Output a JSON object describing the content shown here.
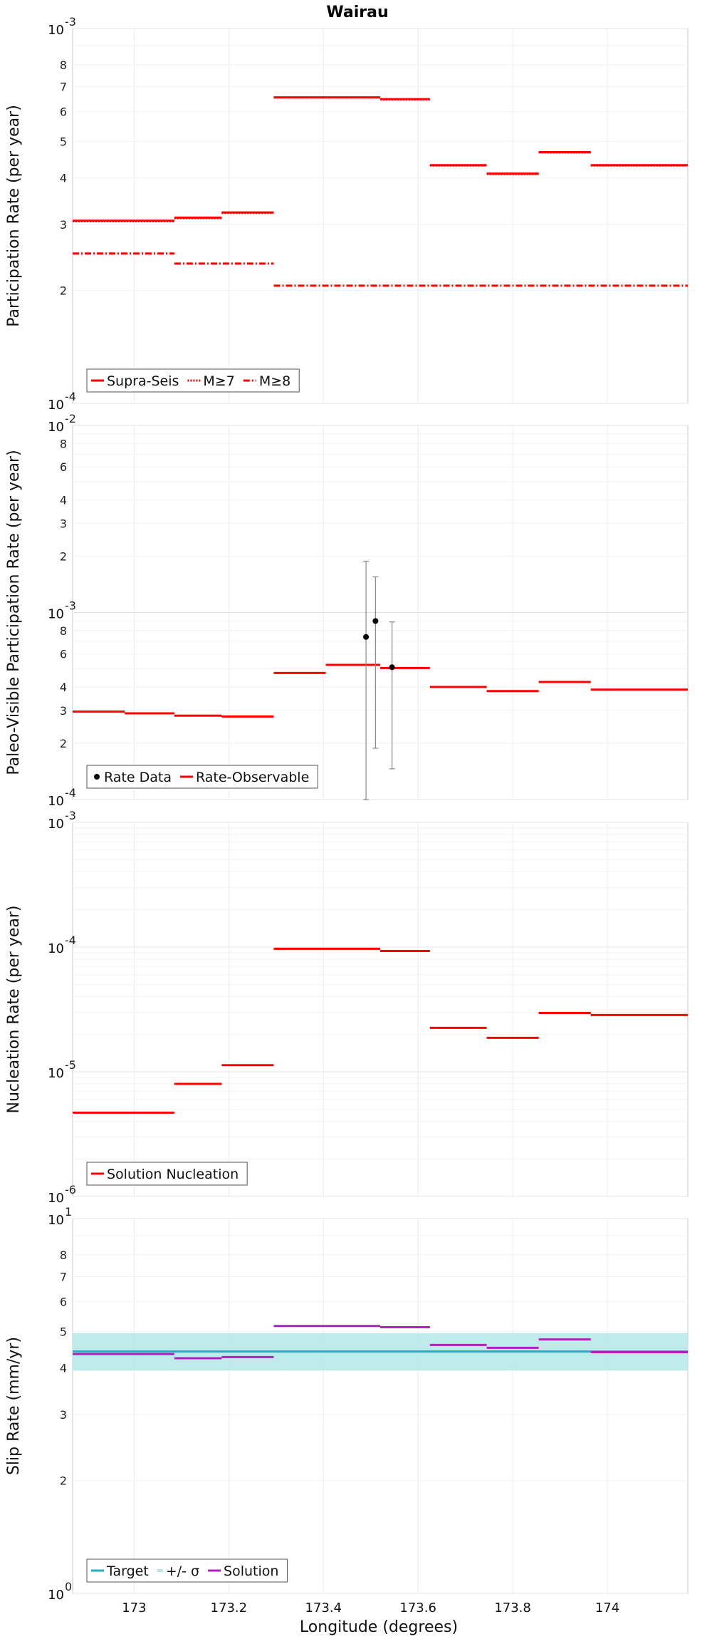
{
  "figure": {
    "title": "Wairau",
    "xlabel": "Longitude (degrees)",
    "xlim": [
      172.87,
      174.17
    ],
    "xticks": [
      {
        "v": 173,
        "label": "173"
      },
      {
        "v": 173.2,
        "label": "173.2"
      },
      {
        "v": 173.4,
        "label": "173.4"
      },
      {
        "v": 173.6,
        "label": "173.6"
      },
      {
        "v": 173.8,
        "label": "173.8"
      },
      {
        "v": 174,
        "label": "174"
      }
    ]
  },
  "chart_data": [
    {
      "type": "line",
      "id": "participation",
      "ylabel": "Participation Rate (per year)",
      "yscale": "log",
      "ylim": [
        0.0001,
        0.001
      ],
      "decade_labels": [
        {
          "exp": "-4"
        },
        {
          "exp": "-3"
        }
      ],
      "minor_labels": [
        "2",
        "3",
        "4",
        "5",
        "6",
        "7",
        "8"
      ],
      "legend": {
        "position": "bottom-left",
        "entries": [
          {
            "label": "Supra-Seis",
            "style": "solid"
          },
          {
            "label": "M≥7",
            "style": "dotted"
          },
          {
            "label": "M≥8",
            "style": "dashdot"
          }
        ]
      },
      "series": [
        {
          "name": "Supra-Seis",
          "color": "#ff0000",
          "style": "solid",
          "segments": [
            {
              "x0": 172.87,
              "x1": 173.085,
              "y": 0.000307
            },
            {
              "x0": 173.085,
              "x1": 173.185,
              "y": 0.000313
            },
            {
              "x0": 173.185,
              "x1": 173.295,
              "y": 0.000323
            },
            {
              "x0": 173.295,
              "x1": 173.52,
              "y": 0.000655
            },
            {
              "x0": 173.52,
              "x1": 173.625,
              "y": 0.000648
            },
            {
              "x0": 173.625,
              "x1": 173.745,
              "y": 0.000432
            },
            {
              "x0": 173.745,
              "x1": 173.855,
              "y": 0.00041
            },
            {
              "x0": 173.855,
              "x1": 173.965,
              "y": 0.000468
            },
            {
              "x0": 173.965,
              "x1": 174.17,
              "y": 0.000432
            }
          ]
        },
        {
          "name": "M≥7",
          "color": "#ff0000",
          "style": "dotted",
          "segments": [
            {
              "x0": 172.87,
              "x1": 173.085,
              "y": 0.000306
            },
            {
              "x0": 173.085,
              "x1": 173.185,
              "y": 0.000312
            },
            {
              "x0": 173.185,
              "x1": 173.295,
              "y": 0.000322
            },
            {
              "x0": 173.295,
              "x1": 173.52,
              "y": 0.000654
            },
            {
              "x0": 173.52,
              "x1": 173.625,
              "y": 0.000647
            },
            {
              "x0": 173.625,
              "x1": 173.745,
              "y": 0.000431
            },
            {
              "x0": 173.745,
              "x1": 173.855,
              "y": 0.000409
            },
            {
              "x0": 173.855,
              "x1": 173.965,
              "y": 0.000467
            },
            {
              "x0": 173.965,
              "x1": 174.17,
              "y": 0.000431
            }
          ]
        },
        {
          "name": "M≥8",
          "color": "#ff0000",
          "style": "dashdot",
          "segments": [
            {
              "x0": 172.87,
              "x1": 173.085,
              "y": 0.000251
            },
            {
              "x0": 173.085,
              "x1": 173.295,
              "y": 0.000236
            },
            {
              "x0": 173.295,
              "x1": 174.17,
              "y": 0.000206
            }
          ]
        }
      ]
    },
    {
      "type": "line",
      "id": "paleo",
      "ylabel": "Paleo-Visible Participation Rate (per year)",
      "yscale": "log",
      "ylim": [
        0.0001,
        0.01
      ],
      "decade_labels": [
        {
          "exp": "-4"
        },
        {
          "exp": "-3"
        },
        {
          "exp": "-2"
        }
      ],
      "minor_labels": [
        "2",
        "3",
        "4",
        "6",
        "8"
      ],
      "legend": {
        "position": "bottom-left",
        "entries": [
          {
            "label": "Rate Data",
            "style": "marker"
          },
          {
            "label": "Rate-Observable",
            "style": "solid"
          }
        ]
      },
      "series": [
        {
          "name": "Rate-Observable",
          "color": "#ff0000",
          "style": "solid",
          "segments": [
            {
              "x0": 172.87,
              "x1": 172.98,
              "y": 0.000295
            },
            {
              "x0": 172.98,
              "x1": 173.085,
              "y": 0.000289
            },
            {
              "x0": 173.085,
              "x1": 173.185,
              "y": 0.000281
            },
            {
              "x0": 173.185,
              "x1": 173.295,
              "y": 0.000278
            },
            {
              "x0": 173.295,
              "x1": 173.405,
              "y": 0.000475
            },
            {
              "x0": 173.405,
              "x1": 173.52,
              "y": 0.000525
            },
            {
              "x0": 173.52,
              "x1": 173.625,
              "y": 0.000505
            },
            {
              "x0": 173.625,
              "x1": 173.745,
              "y": 0.0004
            },
            {
              "x0": 173.745,
              "x1": 173.855,
              "y": 0.00038
            },
            {
              "x0": 173.855,
              "x1": 173.965,
              "y": 0.000425
            },
            {
              "x0": 173.965,
              "x1": 174.17,
              "y": 0.000387
            }
          ]
        },
        {
          "name": "Rate Data",
          "color": "#000000",
          "style": "points",
          "points": [
            {
              "x": 173.49,
              "y": 0.00074,
              "lo": 0.0001,
              "hi": 0.00188
            },
            {
              "x": 173.51,
              "y": 0.0009,
              "lo": 0.000188,
              "hi": 0.00155
            },
            {
              "x": 173.545,
              "y": 0.00051,
              "lo": 0.000146,
              "hi": 0.00089
            }
          ]
        }
      ]
    },
    {
      "type": "line",
      "id": "nucleation",
      "ylabel": "Nucleation Rate (per year)",
      "yscale": "log",
      "ylim": [
        1e-06,
        0.001
      ],
      "decade_labels": [
        {
          "exp": "-6"
        },
        {
          "exp": "-5"
        },
        {
          "exp": "-4"
        },
        {
          "exp": "-3"
        }
      ],
      "minor_labels": [],
      "legend": {
        "position": "bottom-left",
        "entries": [
          {
            "label": "Solution Nucleation",
            "style": "solid"
          }
        ]
      },
      "series": [
        {
          "name": "Solution Nucleation",
          "color": "#ff0000",
          "style": "solid",
          "segments": [
            {
              "x0": 172.87,
              "x1": 173.085,
              "y": 4.7e-06
            },
            {
              "x0": 173.085,
              "x1": 173.185,
              "y": 8e-06
            },
            {
              "x0": 173.185,
              "x1": 173.295,
              "y": 1.13e-05
            },
            {
              "x0": 173.295,
              "x1": 173.52,
              "y": 9.7e-05
            },
            {
              "x0": 173.52,
              "x1": 173.625,
              "y": 9.3e-05
            },
            {
              "x0": 173.625,
              "x1": 173.745,
              "y": 2.25e-05
            },
            {
              "x0": 173.745,
              "x1": 173.855,
              "y": 1.87e-05
            },
            {
              "x0": 173.855,
              "x1": 173.965,
              "y": 2.96e-05
            },
            {
              "x0": 173.965,
              "x1": 174.17,
              "y": 2.85e-05
            }
          ]
        }
      ]
    },
    {
      "type": "line",
      "id": "slip",
      "ylabel": "Slip Rate (mm/yr)",
      "yscale": "log",
      "ylim": [
        1,
        10
      ],
      "decade_labels": [
        {
          "exp": "0"
        },
        {
          "exp": "1"
        }
      ],
      "minor_labels": [
        "2",
        "3",
        "4",
        "5",
        "6",
        "7",
        "8"
      ],
      "legend": {
        "position": "bottom-left",
        "entries": [
          {
            "label": "Target",
            "style": "solid"
          },
          {
            "label": "+/- σ",
            "style": "band"
          },
          {
            "label": "Solution",
            "style": "solid"
          }
        ]
      },
      "band": {
        "name": "+/- σ",
        "color": "#b4e8e8",
        "x0": 172.87,
        "x1": 174.17,
        "lo": 3.93,
        "hi": 4.95
      },
      "series": [
        {
          "name": "Target",
          "color": "#20b0c0",
          "style": "solid",
          "segments": [
            {
              "x0": 172.87,
              "x1": 174.17,
              "y": 4.42
            }
          ]
        },
        {
          "name": "Solution",
          "color": "#b020c0",
          "style": "solid",
          "segments": [
            {
              "x0": 172.87,
              "x1": 173.085,
              "y": 4.35
            },
            {
              "x0": 173.085,
              "x1": 173.185,
              "y": 4.24
            },
            {
              "x0": 173.185,
              "x1": 173.295,
              "y": 4.27
            },
            {
              "x0": 173.295,
              "x1": 173.52,
              "y": 5.17
            },
            {
              "x0": 173.52,
              "x1": 173.625,
              "y": 5.13
            },
            {
              "x0": 173.625,
              "x1": 173.745,
              "y": 4.6
            },
            {
              "x0": 173.745,
              "x1": 173.855,
              "y": 4.52
            },
            {
              "x0": 173.855,
              "x1": 173.965,
              "y": 4.76
            },
            {
              "x0": 173.965,
              "x1": 174.17,
              "y": 4.4
            }
          ]
        }
      ]
    }
  ]
}
